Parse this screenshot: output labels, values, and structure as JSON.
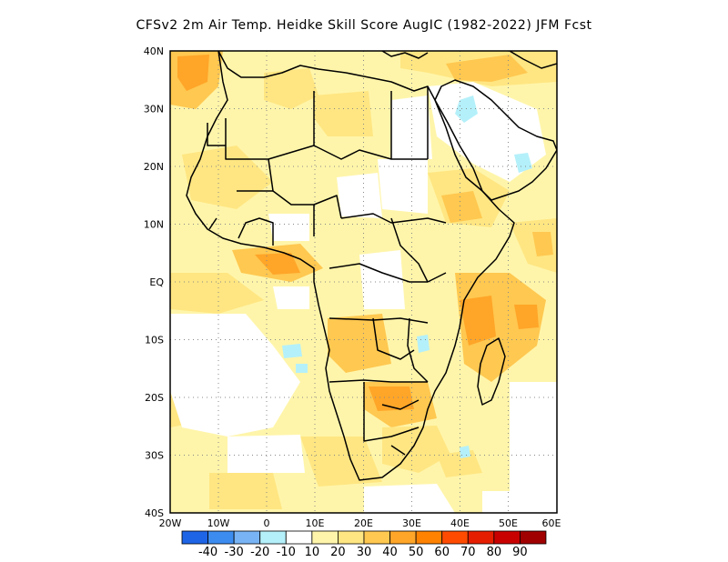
{
  "title": "CFSv2  2m Air Temp. Heidke Skill Score AugIC (1982-2022) JFM Fcst",
  "lat_labels": [
    "40N",
    "30N",
    "20N",
    "10N",
    "EQ",
    "10S",
    "20S",
    "30S",
    "40S"
  ],
  "lon_labels": [
    "20W",
    "10W",
    "0",
    "10E",
    "20E",
    "30E",
    "40E",
    "50E",
    "60E"
  ],
  "colorbar": {
    "colors": [
      "#1e64e6",
      "#3c8cf0",
      "#78b4f5",
      "#b4f0fa",
      "#ffffff",
      "#fff5aa",
      "#ffe682",
      "#ffc850",
      "#ffa528",
      "#ff8200",
      "#ff4b00",
      "#e61e00",
      "#c80000",
      "#a00000"
    ],
    "labels": [
      "-40",
      "-30",
      "-20",
      "-10",
      "10",
      "20",
      "30",
      "40",
      "50",
      "60",
      "70",
      "80",
      "90"
    ]
  },
  "map": {
    "lon_range": [
      -20,
      60
    ],
    "lat_range": [
      -40,
      40
    ],
    "field": "Heidke Skill Score",
    "projection": "cylindrical equidistant",
    "grid": "dotted"
  }
}
